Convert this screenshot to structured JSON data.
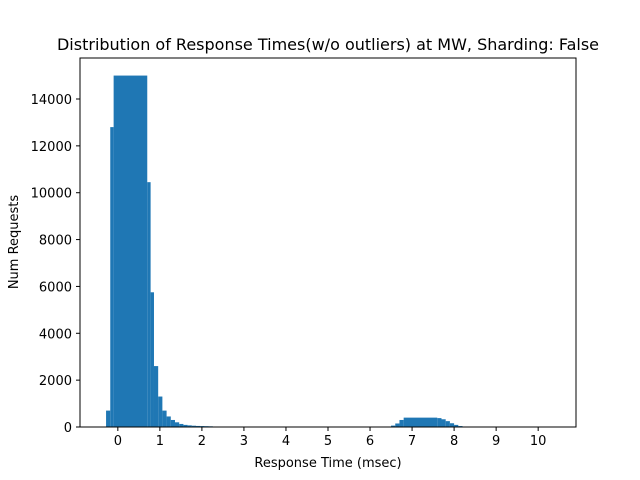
{
  "chart_data": {
    "type": "bar",
    "title": "Distribution of Response Times(w/o outliers) at MW, Sharding: False",
    "xlabel": "Response Time (msec)",
    "ylabel": "Num Requests",
    "xlim": [
      -0.9,
      10.9
    ],
    "ylim": [
      0,
      15750
    ],
    "xticks": [
      "0",
      "1",
      "2",
      "3",
      "4",
      "5",
      "6",
      "7",
      "8",
      "9",
      "10"
    ],
    "yticks": [
      "0",
      "2000",
      "4000",
      "6000",
      "8000",
      "10000",
      "12000",
      "14000"
    ],
    "bar_color": "#1f77b4",
    "grid": false,
    "series": [
      {
        "bins": [
          {
            "x0": -0.28,
            "x1": -0.18,
            "value": 700
          },
          {
            "x0": -0.18,
            "x1": -0.1,
            "value": 12800
          },
          {
            "x0": -0.1,
            "x1": 0.7,
            "value": 15000
          },
          {
            "x0": 0.7,
            "x1": 0.78,
            "value": 10450
          },
          {
            "x0": 0.78,
            "x1": 0.86,
            "value": 5750
          },
          {
            "x0": 0.86,
            "x1": 0.96,
            "value": 2600
          },
          {
            "x0": 0.96,
            "x1": 1.06,
            "value": 1300
          },
          {
            "x0": 1.06,
            "x1": 1.16,
            "value": 700
          },
          {
            "x0": 1.16,
            "x1": 1.26,
            "value": 450
          },
          {
            "x0": 1.26,
            "x1": 1.36,
            "value": 300
          },
          {
            "x0": 1.36,
            "x1": 1.46,
            "value": 200
          },
          {
            "x0": 1.46,
            "x1": 1.56,
            "value": 130
          },
          {
            "x0": 1.56,
            "x1": 1.66,
            "value": 90
          },
          {
            "x0": 1.66,
            "x1": 1.76,
            "value": 70
          },
          {
            "x0": 1.76,
            "x1": 1.86,
            "value": 55
          },
          {
            "x0": 1.86,
            "x1": 1.96,
            "value": 45
          },
          {
            "x0": 1.96,
            "x1": 2.06,
            "value": 40
          },
          {
            "x0": 2.06,
            "x1": 2.16,
            "value": 35
          },
          {
            "x0": 2.16,
            "x1": 2.26,
            "value": 30
          },
          {
            "x0": 2.26,
            "x1": 2.36,
            "value": 20
          },
          {
            "x0": 2.36,
            "x1": 2.46,
            "value": 15
          },
          {
            "x0": 2.46,
            "x1": 2.56,
            "value": 10
          },
          {
            "x0": 6.5,
            "x1": 6.6,
            "value": 60
          },
          {
            "x0": 6.6,
            "x1": 6.7,
            "value": 150
          },
          {
            "x0": 6.7,
            "x1": 6.8,
            "value": 300
          },
          {
            "x0": 6.8,
            "x1": 7.6,
            "value": 400
          },
          {
            "x0": 7.6,
            "x1": 7.7,
            "value": 380
          },
          {
            "x0": 7.7,
            "x1": 7.8,
            "value": 330
          },
          {
            "x0": 7.8,
            "x1": 7.9,
            "value": 250
          },
          {
            "x0": 7.9,
            "x1": 8.0,
            "value": 160
          },
          {
            "x0": 8.0,
            "x1": 8.1,
            "value": 90
          },
          {
            "x0": 8.1,
            "x1": 8.2,
            "value": 40
          },
          {
            "x0": 8.2,
            "x1": 8.3,
            "value": 15
          }
        ]
      }
    ]
  }
}
